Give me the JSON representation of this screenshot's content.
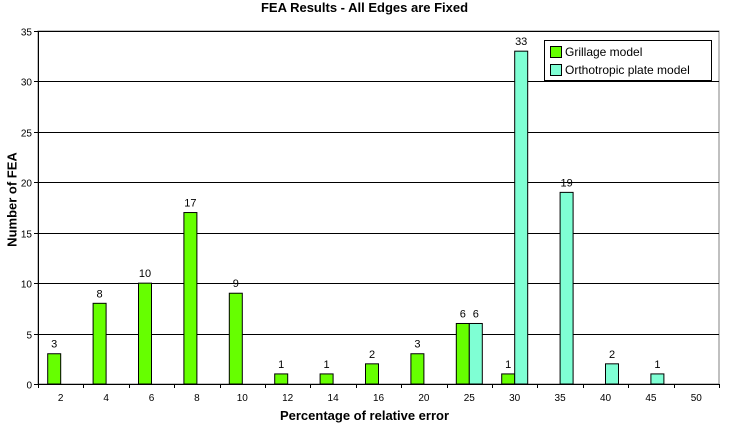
{
  "chart_data": {
    "type": "bar",
    "title": "FEA Results - All Edges are Fixed",
    "xlabel": "Percentage of relative error",
    "ylabel": "Number of FEA",
    "categories": [
      "2",
      "4",
      "6",
      "8",
      "10",
      "12",
      "14",
      "16",
      "20",
      "25",
      "30",
      "35",
      "40",
      "45",
      "50"
    ],
    "series": [
      {
        "name": "Grillage model",
        "color": "#66ff00",
        "values": [
          3,
          8,
          10,
          17,
          9,
          1,
          1,
          2,
          3,
          6,
          1,
          null,
          null,
          null,
          null
        ]
      },
      {
        "name": "Orthotropic plate model",
        "color": "#7fffd4",
        "values": [
          null,
          null,
          null,
          null,
          null,
          null,
          null,
          null,
          null,
          6,
          33,
          19,
          2,
          1,
          null
        ]
      }
    ],
    "ylim": [
      0,
      35
    ],
    "yticks": [
      0,
      5,
      10,
      15,
      20,
      25,
      30,
      35
    ],
    "grid": true,
    "legend_position": "top-right"
  }
}
